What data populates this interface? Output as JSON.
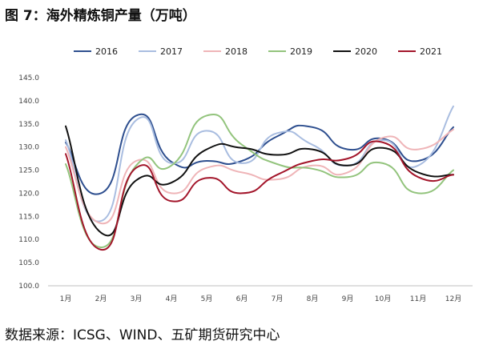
{
  "title": "图 7：海外精炼铜产量（万吨）",
  "source": "数据来源：ICSG、WIND、五矿期货研究中心",
  "chart_data": {
    "type": "line",
    "title": "图 7：海外精炼铜产量（万吨）",
    "categories": [
      "1月",
      "2月",
      "3月",
      "4月",
      "5月",
      "6月",
      "7月",
      "8月",
      "9月",
      "10月",
      "11月",
      "12月"
    ],
    "ylim": [
      100,
      145
    ],
    "yticks": [
      "100.0",
      "105.0",
      "110.0",
      "115.0",
      "120.0",
      "125.0",
      "130.0",
      "135.0",
      "140.0",
      "145.0"
    ],
    "grid": false,
    "legend_position": "top",
    "series": [
      {
        "name": "2016",
        "color": "#2e4f8f",
        "values": [
          131.0,
          120.0,
          136.8,
          126.8,
          127.0,
          127.0,
          132.3,
          134.3,
          129.5,
          131.8,
          127.0,
          134.3
        ]
      },
      {
        "name": "2017",
        "color": "#a9bde0",
        "values": [
          131.5,
          114.0,
          135.8,
          126.5,
          133.5,
          126.5,
          133.0,
          130.5,
          126.0,
          131.5,
          126.0,
          138.8
        ]
      },
      {
        "name": "2018",
        "color": "#efb5b8",
        "values": [
          130.0,
          113.5,
          127.0,
          120.0,
          125.5,
          124.5,
          123.0,
          126.0,
          124.5,
          132.0,
          129.5,
          133.8
        ]
      },
      {
        "name": "2019",
        "color": "#93c47d",
        "values": [
          126.3,
          108.3,
          126.0,
          126.0,
          136.8,
          130.5,
          126.3,
          125.3,
          123.5,
          126.5,
          120.0,
          125.0
        ]
      },
      {
        "name": "2020",
        "color": "#111111",
        "values": [
          134.5,
          111.5,
          122.8,
          122.3,
          129.5,
          129.8,
          128.3,
          129.5,
          126.0,
          129.8,
          124.5,
          124.0
        ]
      },
      {
        "name": "2021",
        "color": "#a3162b",
        "values": [
          128.5,
          107.8,
          125.5,
          118.3,
          123.3,
          120.0,
          124.0,
          127.0,
          127.5,
          131.0,
          123.5,
          124.0
        ]
      }
    ]
  }
}
